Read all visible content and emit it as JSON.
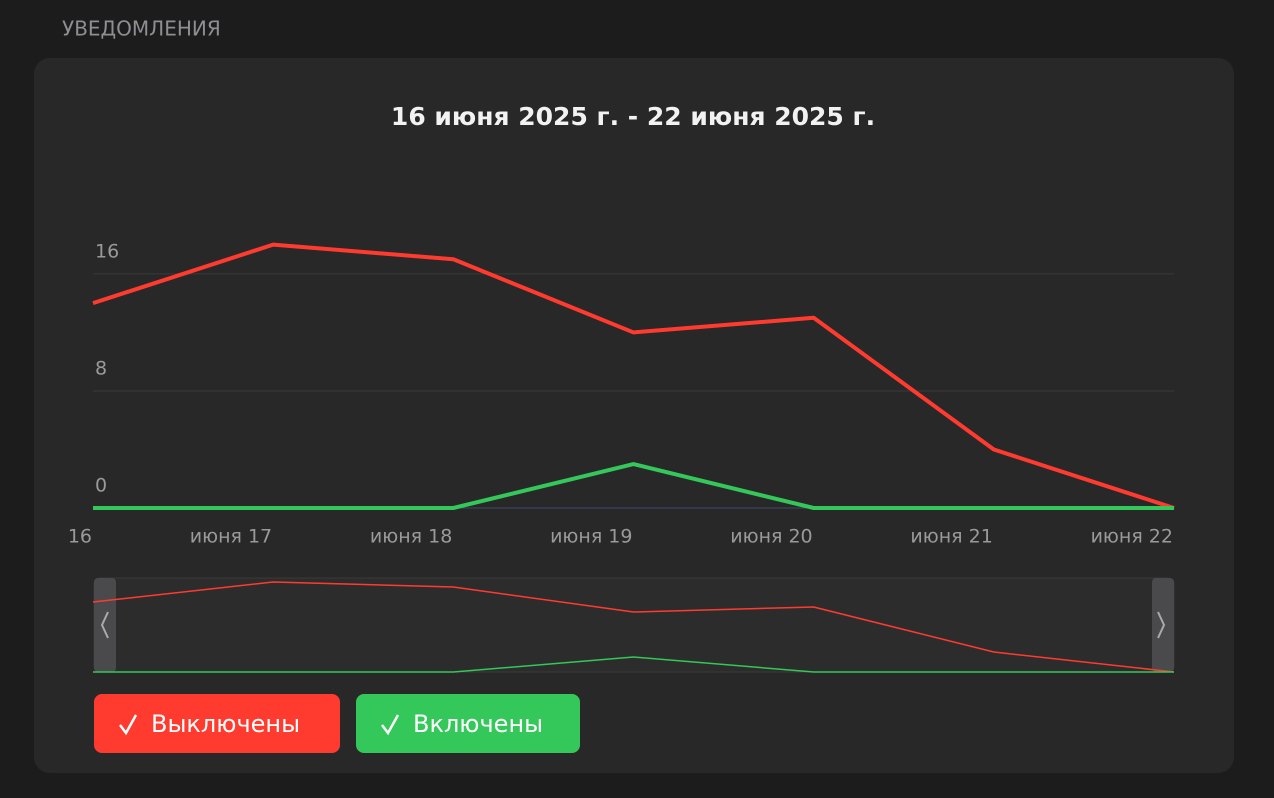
{
  "header": {
    "title": "УВЕДОМЛЕНИЯ"
  },
  "chart_data": {
    "type": "line",
    "title": "16 июня 2025 г. - 22 июня 2025 г.",
    "categories": [
      "16",
      "июня 17",
      "июня 18",
      "июня 19",
      "июня 20",
      "июня 21",
      "июня 22"
    ],
    "series": [
      {
        "name": "Выключены",
        "color": "#ff3b30",
        "values": [
          14,
          18,
          17,
          12,
          13,
          4,
          0
        ]
      },
      {
        "name": "Включены",
        "color": "#34c759",
        "values": [
          0,
          0,
          0,
          3,
          0,
          0,
          0
        ]
      }
    ],
    "ylim": [
      0,
      19
    ],
    "yticks": [
      0,
      8,
      16
    ],
    "grid": true
  }
}
